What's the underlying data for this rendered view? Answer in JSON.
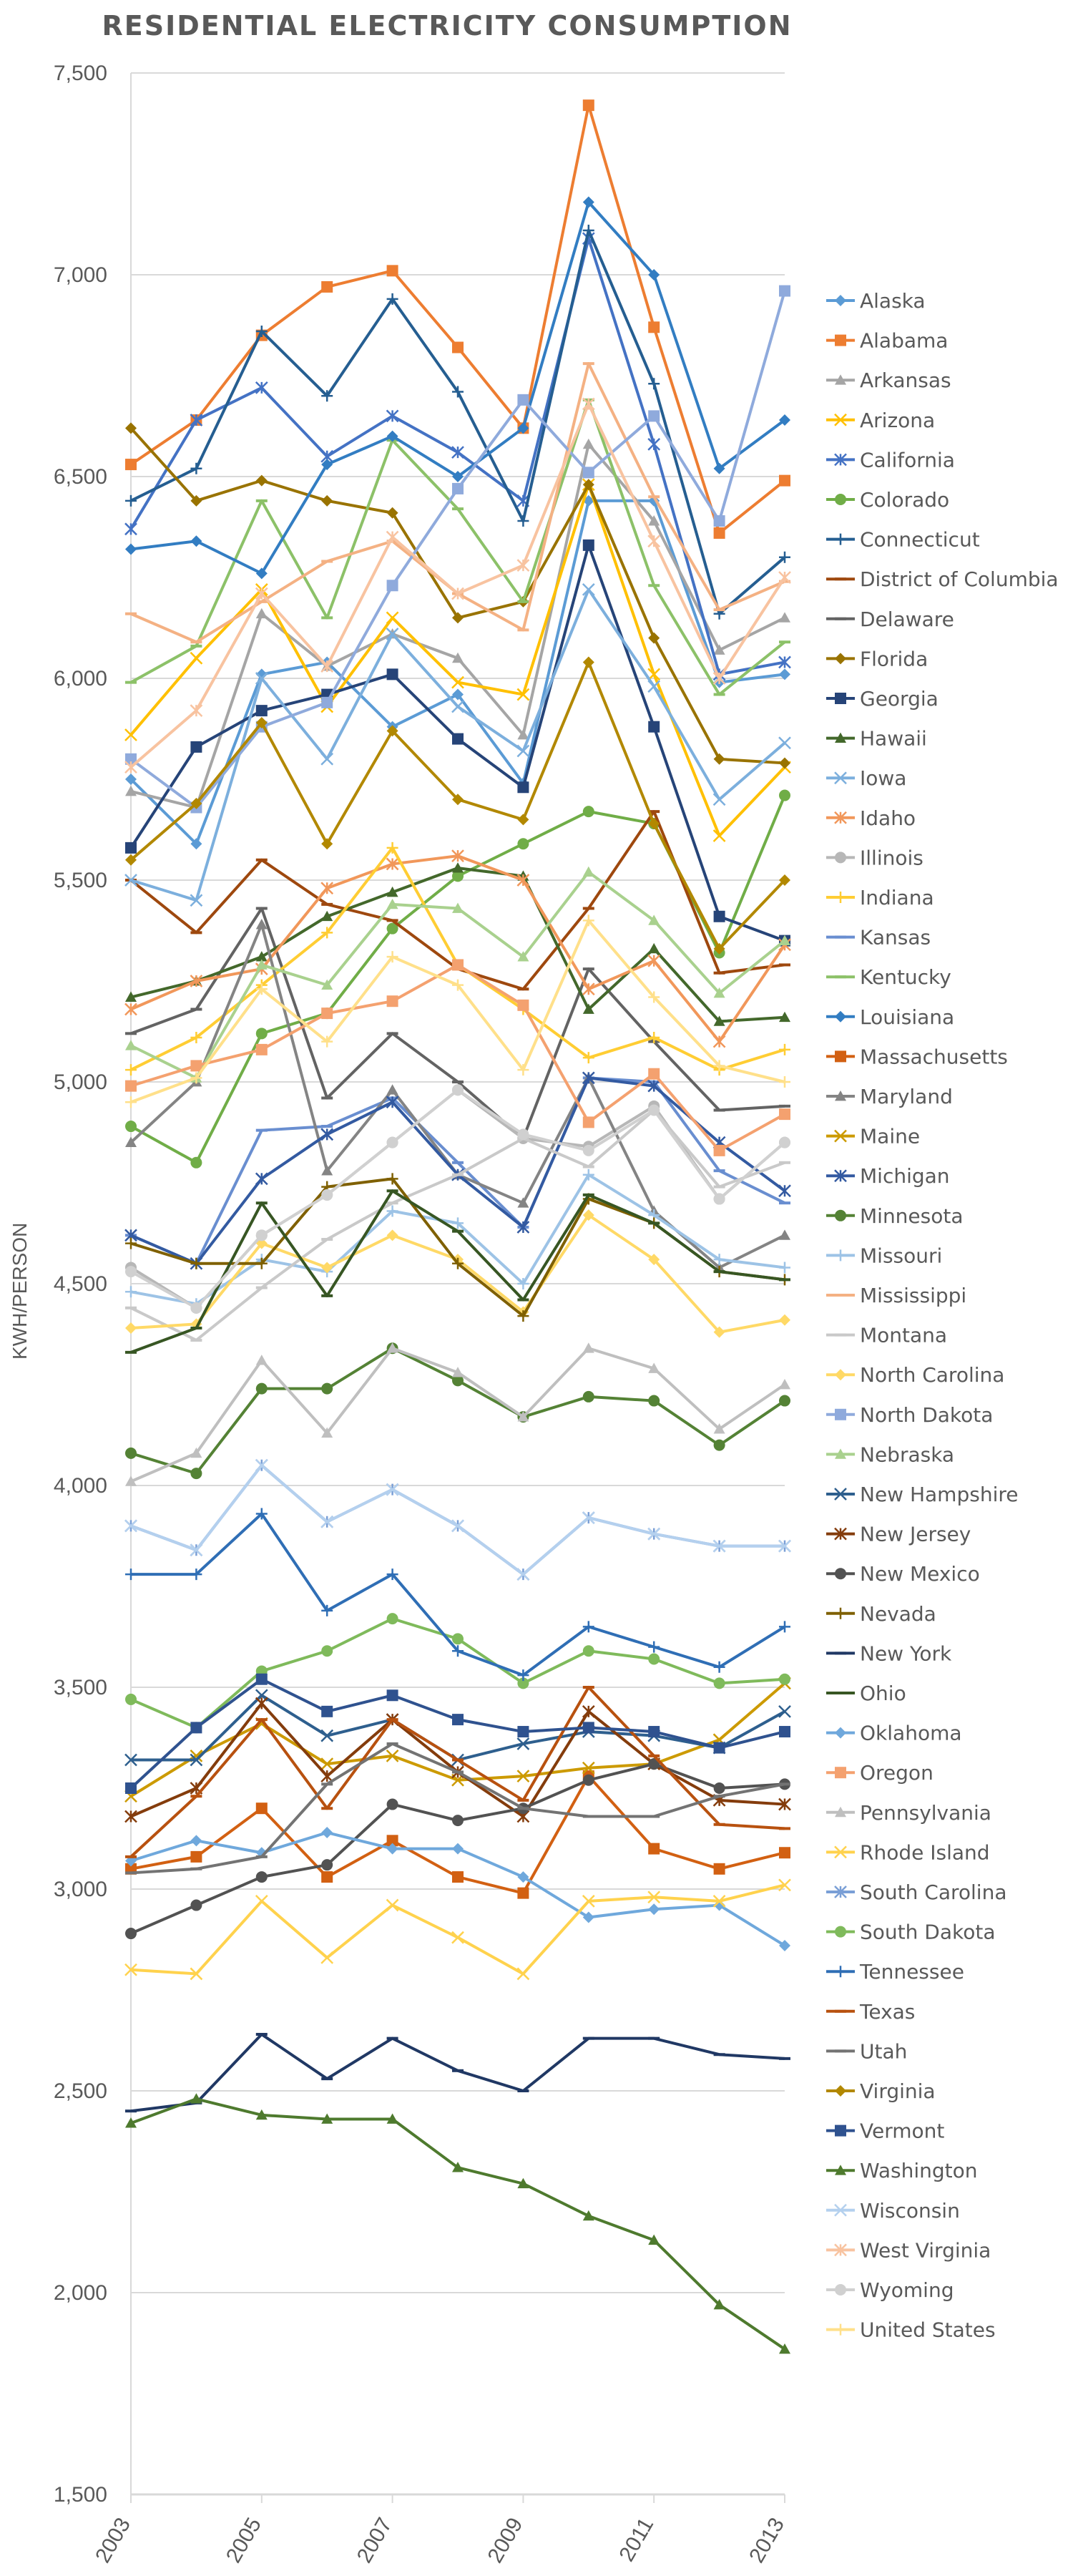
{
  "chart_data": {
    "type": "line",
    "title": "RESIDENTIAL ELECTRICITY CONSUMPTION",
    "xlabel": "",
    "ylabel": "KWH/PERSON",
    "ylim": [
      1500,
      7500
    ],
    "yticks": [
      1500,
      2000,
      2500,
      3000,
      3500,
      4000,
      4500,
      5000,
      5500,
      6000,
      6500,
      7000,
      7500
    ],
    "ytick_labels": [
      "1,500",
      "2,000",
      "2,500",
      "3,000",
      "3,500",
      "4,000",
      "4,500",
      "5,000",
      "5,500",
      "6,000",
      "6,500",
      "7,000",
      "7,500"
    ],
    "x": [
      2003,
      2004,
      2005,
      2006,
      2007,
      2008,
      2009,
      2010,
      2011,
      2012,
      2013
    ],
    "xtick_labels": [
      "2003",
      "2005",
      "2007",
      "2009",
      "2011",
      "2013"
    ],
    "grid": true,
    "legend_position": "right",
    "series": [
      {
        "name": "Alaska",
        "color": "#5B9BD5",
        "marker": "diamond",
        "values": [
          5750,
          5590,
          6010,
          6040,
          5880,
          5960,
          5740,
          6440,
          6440,
          5990,
          6010
        ]
      },
      {
        "name": "Alabama",
        "color": "#ED7D31",
        "marker": "square",
        "values": [
          6530,
          6640,
          6850,
          6970,
          7010,
          6820,
          6620,
          7420,
          6870,
          6360,
          6490
        ]
      },
      {
        "name": "Arkansas",
        "color": "#A5A5A5",
        "marker": "triangle",
        "values": [
          5720,
          5680,
          6160,
          6030,
          6110,
          6050,
          5860,
          6580,
          6390,
          6070,
          6150
        ]
      },
      {
        "name": "Arizona",
        "color": "#FFC000",
        "marker": "x",
        "values": [
          5860,
          6050,
          6220,
          5930,
          6150,
          5990,
          5960,
          6480,
          6010,
          5610,
          5780
        ]
      },
      {
        "name": "California",
        "color": "#4472C4",
        "marker": "star",
        "values": [
          6370,
          6640,
          6720,
          6550,
          6650,
          6560,
          6440,
          7090,
          6580,
          6010,
          6040
        ]
      },
      {
        "name": "Colorado",
        "color": "#70AD47",
        "marker": "circle",
        "values": [
          4890,
          4800,
          5120,
          5170,
          5380,
          5510,
          5590,
          5670,
          5640,
          5320,
          5710
        ]
      },
      {
        "name": "Connecticut",
        "color": "#255E91",
        "marker": "plus",
        "values": [
          6440,
          6520,
          6860,
          6700,
          6940,
          6710,
          6390,
          7110,
          6730,
          6160,
          6300
        ]
      },
      {
        "name": "District of Columbia",
        "color": "#9E480E",
        "marker": "dash",
        "values": [
          5500,
          5370,
          5550,
          5440,
          5400,
          5280,
          5230,
          5430,
          5670,
          5270,
          5290
        ]
      },
      {
        "name": "Delaware",
        "color": "#636363",
        "marker": "dash",
        "values": [
          5120,
          5180,
          5430,
          4960,
          5120,
          5000,
          4860,
          5280,
          5100,
          4930,
          4940
        ]
      },
      {
        "name": "Florida",
        "color": "#997300",
        "marker": "diamond",
        "values": [
          6620,
          6440,
          6490,
          6440,
          6410,
          6150,
          6190,
          6480,
          6100,
          5800,
          5790
        ]
      },
      {
        "name": "Georgia",
        "color": "#264478",
        "marker": "square",
        "values": [
          5580,
          5830,
          5920,
          5960,
          6010,
          5850,
          5730,
          6330,
          5880,
          5410,
          5350
        ]
      },
      {
        "name": "Hawaii",
        "color": "#43682B",
        "marker": "triangle",
        "values": [
          5210,
          5250,
          5310,
          5410,
          5470,
          5530,
          5510,
          5180,
          5330,
          5150,
          5160
        ]
      },
      {
        "name": "Iowa",
        "color": "#7CAFDD",
        "marker": "x",
        "values": [
          5500,
          5450,
          6000,
          5800,
          6110,
          5930,
          5820,
          6220,
          5980,
          5700,
          5840
        ]
      },
      {
        "name": "Idaho",
        "color": "#F1975A",
        "marker": "star",
        "values": [
          5180,
          5250,
          5280,
          5480,
          5540,
          5560,
          5500,
          5230,
          5300,
          5100,
          5340
        ]
      },
      {
        "name": "Illinois",
        "color": "#B7B7B7",
        "marker": "circle",
        "values": [
          4540,
          4440,
          4620,
          4720,
          4850,
          4980,
          4860,
          4840,
          4940,
          4710,
          4850
        ]
      },
      {
        "name": "Indiana",
        "color": "#FFCD33",
        "marker": "plus",
        "values": [
          5030,
          5110,
          5240,
          5370,
          5580,
          5290,
          5180,
          5060,
          5110,
          5030,
          5080
        ]
      },
      {
        "name": "Kansas",
        "color": "#698ED0",
        "marker": "dash",
        "values": [
          4620,
          4550,
          4880,
          4890,
          4960,
          4800,
          4640,
          5010,
          5000,
          4780,
          4700
        ]
      },
      {
        "name": "Kentucky",
        "color": "#8CC168",
        "marker": "dash",
        "values": [
          5990,
          6080,
          6440,
          6150,
          6590,
          6420,
          6190,
          6690,
          6230,
          5960,
          6090
        ]
      },
      {
        "name": "Louisiana",
        "color": "#327DC2",
        "marker": "diamond",
        "values": [
          6320,
          6340,
          6260,
          6530,
          6600,
          6500,
          6620,
          7180,
          7000,
          6520,
          6640
        ]
      },
      {
        "name": "Massachusetts",
        "color": "#D26012",
        "marker": "square",
        "values": [
          3050,
          3080,
          3200,
          3030,
          3120,
          3030,
          2990,
          3280,
          3100,
          3050,
          3090
        ]
      },
      {
        "name": "Maryland",
        "color": "#848484",
        "marker": "triangle",
        "values": [
          4850,
          5000,
          5390,
          4780,
          4980,
          4770,
          4700,
          5010,
          4680,
          4540,
          4620
        ]
      },
      {
        "name": "Maine",
        "color": "#CC9A00",
        "marker": "x",
        "values": [
          3230,
          3330,
          3410,
          3310,
          3330,
          3270,
          3280,
          3300,
          3310,
          3370,
          3510
        ]
      },
      {
        "name": "Michigan",
        "color": "#335AA1",
        "marker": "star",
        "values": [
          4620,
          4550,
          4760,
          4870,
          4950,
          4770,
          4640,
          5010,
          4990,
          4850,
          4730
        ]
      },
      {
        "name": "Minnesota",
        "color": "#548235",
        "marker": "circle",
        "values": [
          4080,
          4030,
          4240,
          4240,
          4340,
          4260,
          4170,
          4220,
          4210,
          4100,
          4210
        ]
      },
      {
        "name": "Missouri",
        "color": "#9DC3E6",
        "marker": "plus",
        "values": [
          4480,
          4450,
          4560,
          4530,
          4680,
          4650,
          4500,
          4770,
          4670,
          4560,
          4540
        ]
      },
      {
        "name": "Mississippi",
        "color": "#F4B183",
        "marker": "dash",
        "values": [
          6160,
          6090,
          6190,
          6290,
          6340,
          6210,
          6120,
          6780,
          6450,
          6170,
          6240
        ]
      },
      {
        "name": "Montana",
        "color": "#C9C9C9",
        "marker": "dash",
        "values": [
          4440,
          4360,
          4490,
          4610,
          4700,
          4770,
          4860,
          4790,
          4930,
          4740,
          4800
        ]
      },
      {
        "name": "North Carolina",
        "color": "#FFD966",
        "marker": "diamond",
        "values": [
          4390,
          4400,
          4600,
          4540,
          4620,
          4560,
          4430,
          4670,
          4560,
          4380,
          4410
        ]
      },
      {
        "name": "North Dakota",
        "color": "#8FAADC",
        "marker": "square",
        "values": [
          5800,
          5680,
          5880,
          5940,
          6230,
          6470,
          6690,
          6510,
          6650,
          6390,
          6960
        ]
      },
      {
        "name": "Nebraska",
        "color": "#A9D18E",
        "marker": "triangle",
        "values": [
          5090,
          5010,
          5290,
          5240,
          5440,
          5430,
          5310,
          5520,
          5400,
          5220,
          5350
        ]
      },
      {
        "name": "New Hampshire",
        "color": "#2E5F8E",
        "marker": "x",
        "values": [
          3320,
          3320,
          3480,
          3380,
          3420,
          3320,
          3360,
          3390,
          3380,
          3350,
          3440
        ]
      },
      {
        "name": "New Jersey",
        "color": "#843C0C",
        "marker": "star",
        "values": [
          3180,
          3250,
          3460,
          3280,
          3420,
          3290,
          3180,
          3440,
          3310,
          3220,
          3210
        ]
      },
      {
        "name": "New Mexico",
        "color": "#525252",
        "marker": "circle",
        "values": [
          2890,
          2960,
          3030,
          3060,
          3210,
          3170,
          3200,
          3270,
          3310,
          3250,
          3260
        ]
      },
      {
        "name": "Nevada",
        "color": "#7F6000",
        "marker": "plus",
        "values": [
          4600,
          4550,
          4550,
          4740,
          4760,
          4550,
          4420,
          4710,
          4650,
          4530,
          4510
        ]
      },
      {
        "name": "New York",
        "color": "#203864",
        "marker": "dash",
        "values": [
          2450,
          2470,
          2640,
          2530,
          2630,
          2550,
          2500,
          2630,
          2630,
          2590,
          2580
        ]
      },
      {
        "name": "Ohio",
        "color": "#375623",
        "marker": "dash",
        "values": [
          4330,
          4390,
          4700,
          4470,
          4730,
          4630,
          4460,
          4720,
          4650,
          4530,
          4510
        ]
      },
      {
        "name": "Oklahoma",
        "color": "#6FA8DC",
        "marker": "diamond",
        "values": [
          3070,
          3120,
          3090,
          3140,
          3100,
          3100,
          3030,
          2930,
          2950,
          2960,
          2860
        ]
      },
      {
        "name": "Oregon",
        "color": "#F4A16F",
        "marker": "square",
        "values": [
          4990,
          5040,
          5080,
          5170,
          5200,
          5290,
          5190,
          4900,
          5020,
          4830,
          4920
        ]
      },
      {
        "name": "Pennsylvania",
        "color": "#BFBFBF",
        "marker": "triangle",
        "values": [
          4010,
          4080,
          4310,
          4130,
          4340,
          4280,
          4170,
          4340,
          4290,
          4140,
          4250
        ]
      },
      {
        "name": "Rhode Island",
        "color": "#FFD24D",
        "marker": "x",
        "values": [
          2800,
          2790,
          2970,
          2830,
          2960,
          2880,
          2790,
          2970,
          2980,
          2970,
          3010
        ]
      },
      {
        "name": "South Carolina",
        "color": "#7A9FD6",
        "marker": "star",
        "values": [
          3900,
          3840,
          4050,
          3910,
          3990,
          3900,
          3780,
          3920,
          3880,
          3850,
          3850
        ]
      },
      {
        "name": "South Dakota",
        "color": "#7FBA5B",
        "marker": "circle",
        "values": [
          3470,
          3400,
          3540,
          3590,
          3670,
          3620,
          3510,
          3590,
          3570,
          3510,
          3520
        ]
      },
      {
        "name": "Tennessee",
        "color": "#2F6EB5",
        "marker": "plus",
        "values": [
          3780,
          3780,
          3930,
          3690,
          3780,
          3590,
          3530,
          3650,
          3600,
          3550,
          3650
        ]
      },
      {
        "name": "Texas",
        "color": "#B8510F",
        "marker": "dash",
        "values": [
          3080,
          3230,
          3420,
          3200,
          3420,
          3320,
          3220,
          3500,
          3330,
          3160,
          3150
        ]
      },
      {
        "name": "Utah",
        "color": "#737373",
        "marker": "dash",
        "values": [
          3040,
          3050,
          3080,
          3260,
          3360,
          3290,
          3200,
          3180,
          3180,
          3230,
          3260
        ]
      },
      {
        "name": "Virginia",
        "color": "#B28800",
        "marker": "diamond",
        "values": [
          5550,
          5690,
          5890,
          5590,
          5870,
          5700,
          5650,
          6040,
          5640,
          5330,
          5500
        ]
      },
      {
        "name": "Vermont",
        "color": "#2F528F",
        "marker": "square",
        "values": [
          3250,
          3400,
          3520,
          3440,
          3480,
          3420,
          3390,
          3400,
          3390,
          3350,
          3390
        ]
      },
      {
        "name": "Washington",
        "color": "#4E7A2E",
        "marker": "triangle",
        "values": [
          2420,
          2480,
          2440,
          2430,
          2430,
          2310,
          2270,
          2190,
          2130,
          1970,
          1860
        ]
      },
      {
        "name": "Wisconsin",
        "color": "#B4D0EE",
        "marker": "x",
        "values": [
          3900,
          3840,
          4050,
          3910,
          3990,
          3900,
          3780,
          3920,
          3880,
          3850,
          3850
        ]
      },
      {
        "name": "West Virginia",
        "color": "#F8C3A0",
        "marker": "star",
        "values": [
          5780,
          5920,
          6210,
          6030,
          6350,
          6210,
          6280,
          6680,
          6340,
          6000,
          6250
        ]
      },
      {
        "name": "Wyoming",
        "color": "#D0D0D0",
        "marker": "circle",
        "values": [
          4530,
          4440,
          4620,
          4720,
          4850,
          4980,
          4870,
          4830,
          4930,
          4710,
          4850
        ]
      },
      {
        "name": "United States",
        "color": "#FFE08A",
        "marker": "plus",
        "values": [
          4950,
          5010,
          5230,
          5100,
          5310,
          5240,
          5030,
          5400,
          5210,
          5040,
          5000
        ]
      }
    ]
  }
}
